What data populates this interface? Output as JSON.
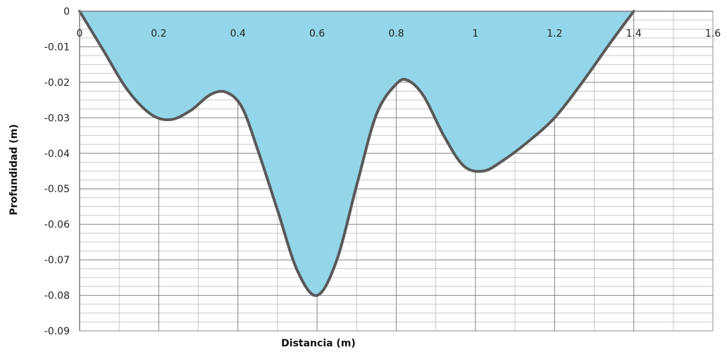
{
  "chart_data": {
    "type": "area",
    "title": "",
    "xlabel": "Distancia (m)",
    "ylabel": "Profundidad (m)",
    "xlim": [
      0,
      1.6
    ],
    "ylim": [
      -0.09,
      0
    ],
    "xticks": [
      0,
      0.2,
      0.4,
      0.6,
      0.8,
      1,
      1.2,
      1.4,
      1.6
    ],
    "xtick_labels": [
      "0",
      "0.2",
      "0.4",
      "0.6",
      "0.8",
      "1",
      "1.2",
      "1.4",
      "1.6"
    ],
    "yticks": [
      0,
      -0.01,
      -0.02,
      -0.03,
      -0.04,
      -0.05,
      -0.06,
      -0.07,
      -0.08,
      -0.09
    ],
    "ytick_labels": [
      "0",
      "-0.01",
      "-0.02",
      "-0.03",
      "-0.04",
      "-0.05",
      "-0.06",
      "-0.07",
      "-0.08",
      "-0.09"
    ],
    "grid": true,
    "legend": false,
    "fill_color": "#93d6e9",
    "line_color": "#595959",
    "series": [
      {
        "x": [
          0,
          0.06,
          0.12,
          0.18,
          0.23,
          0.28,
          0.33,
          0.37,
          0.41,
          0.45,
          0.5,
          0.55,
          0.6,
          0.65,
          0.7,
          0.75,
          0.8,
          0.83,
          0.87,
          0.92,
          0.97,
          1.02,
          1.07,
          1.13,
          1.2,
          1.27,
          1.34,
          1.4
        ],
        "y": [
          0,
          -0.011,
          -0.022,
          -0.029,
          -0.0305,
          -0.028,
          -0.0235,
          -0.0228,
          -0.027,
          -0.039,
          -0.056,
          -0.073,
          -0.08,
          -0.07,
          -0.049,
          -0.029,
          -0.0205,
          -0.0195,
          -0.024,
          -0.035,
          -0.0435,
          -0.045,
          -0.042,
          -0.037,
          -0.03,
          -0.02,
          -0.009,
          0
        ]
      }
    ]
  }
}
